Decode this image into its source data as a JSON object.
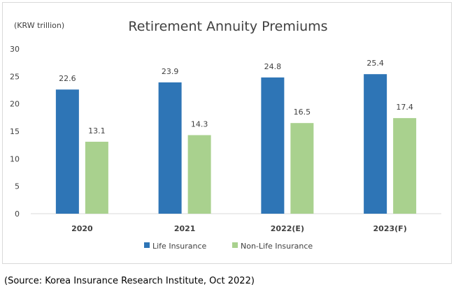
{
  "chart_data": {
    "type": "bar",
    "title": "Retirement Annuity Premiums",
    "unit_label": "(KRW trillion)",
    "categories": [
      "2020",
      "2021",
      "2022(E)",
      "2023(F)"
    ],
    "series": [
      {
        "name": "Life Insurance",
        "color": "#2e75b6",
        "values": [
          22.6,
          23.9,
          24.8,
          25.4
        ]
      },
      {
        "name": "Non-Life Insurance",
        "color": "#a9d18e",
        "values": [
          13.1,
          14.3,
          16.5,
          17.4
        ]
      }
    ],
    "ylim": [
      0,
      30
    ],
    "yticks": [
      0,
      5,
      10,
      15,
      20,
      25,
      30
    ],
    "grid": false,
    "legend_position": "bottom-center"
  },
  "source_note": "(Source: Korea Insurance Research Institute, Oct 2022)"
}
